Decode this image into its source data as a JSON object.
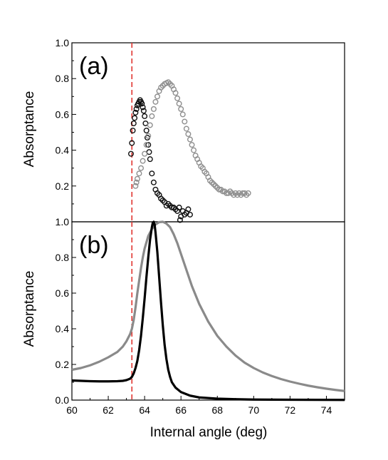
{
  "chart_data": [
    {
      "type": "scatter",
      "panel_label": "(a)",
      "ylabel": "Absorptance",
      "xlim": [
        60,
        75
      ],
      "ylim": [
        0,
        1.0
      ],
      "yticks": [
        "1.0",
        "0.8",
        "0.6",
        "0.4",
        "0.2"
      ],
      "reference_line": {
        "x": 63.3,
        "style": "dashed",
        "color": "#e0342f"
      },
      "series": [
        {
          "color": "#111111",
          "marker": "open-circle",
          "points": [
            [
              63.25,
              0.38
            ],
            [
              63.3,
              0.44
            ],
            [
              63.35,
              0.51
            ],
            [
              63.4,
              0.55
            ],
            [
              63.45,
              0.58
            ],
            [
              63.5,
              0.61
            ],
            [
              63.55,
              0.63
            ],
            [
              63.6,
              0.65
            ],
            [
              63.65,
              0.66
            ],
            [
              63.7,
              0.67
            ],
            [
              63.75,
              0.68
            ],
            [
              63.8,
              0.67
            ],
            [
              63.85,
              0.66
            ],
            [
              63.9,
              0.64
            ],
            [
              63.95,
              0.62
            ],
            [
              64.0,
              0.59
            ],
            [
              64.05,
              0.55
            ],
            [
              64.1,
              0.51
            ],
            [
              64.15,
              0.47
            ],
            [
              64.2,
              0.43
            ],
            [
              64.25,
              0.39
            ],
            [
              64.3,
              0.35
            ],
            [
              64.4,
              0.27
            ],
            [
              64.5,
              0.22
            ],
            [
              64.6,
              0.18
            ],
            [
              64.7,
              0.16
            ],
            [
              64.8,
              0.15
            ],
            [
              64.9,
              0.13
            ],
            [
              65.0,
              0.12
            ],
            [
              65.1,
              0.11
            ],
            [
              65.2,
              0.09
            ],
            [
              65.3,
              0.1
            ],
            [
              65.4,
              0.09
            ],
            [
              65.5,
              0.08
            ],
            [
              65.6,
              0.08
            ],
            [
              65.7,
              0.07
            ],
            [
              65.8,
              0.06
            ],
            [
              65.9,
              0.08
            ],
            [
              66.0,
              0.03
            ],
            [
              66.1,
              0.06
            ],
            [
              66.2,
              0.04
            ],
            [
              66.3,
              0.05
            ],
            [
              66.4,
              0.07
            ],
            [
              66.5,
              0.04
            ],
            [
              65.95,
              0.01
            ]
          ]
        },
        {
          "color": "#8f8f8f",
          "marker": "open-circle",
          "points": [
            [
              63.5,
              0.2
            ],
            [
              63.55,
              0.22
            ],
            [
              63.6,
              0.24
            ],
            [
              63.7,
              0.27
            ],
            [
              63.8,
              0.3
            ],
            [
              63.9,
              0.34
            ],
            [
              64.0,
              0.38
            ],
            [
              64.1,
              0.43
            ],
            [
              64.2,
              0.48
            ],
            [
              64.3,
              0.54
            ],
            [
              64.4,
              0.59
            ],
            [
              64.5,
              0.63
            ],
            [
              64.6,
              0.67
            ],
            [
              64.7,
              0.7
            ],
            [
              64.8,
              0.73
            ],
            [
              64.9,
              0.75
            ],
            [
              65.0,
              0.76
            ],
            [
              65.1,
              0.77
            ],
            [
              65.2,
              0.775
            ],
            [
              65.3,
              0.78
            ],
            [
              65.4,
              0.77
            ],
            [
              65.5,
              0.76
            ],
            [
              65.6,
              0.74
            ],
            [
              65.7,
              0.72
            ],
            [
              65.8,
              0.69
            ],
            [
              65.9,
              0.66
            ],
            [
              66.0,
              0.63
            ],
            [
              66.1,
              0.6
            ],
            [
              66.2,
              0.56
            ],
            [
              66.3,
              0.52
            ],
            [
              66.4,
              0.49
            ],
            [
              66.5,
              0.46
            ],
            [
              66.6,
              0.43
            ],
            [
              66.7,
              0.4
            ],
            [
              66.8,
              0.37
            ],
            [
              66.9,
              0.35
            ],
            [
              67.0,
              0.33
            ],
            [
              67.1,
              0.31
            ],
            [
              67.2,
              0.3
            ],
            [
              67.3,
              0.28
            ],
            [
              67.4,
              0.27
            ],
            [
              67.5,
              0.25
            ],
            [
              67.6,
              0.23
            ],
            [
              67.7,
              0.22
            ],
            [
              67.8,
              0.21
            ],
            [
              67.9,
              0.2
            ],
            [
              68.0,
              0.19
            ],
            [
              68.1,
              0.18
            ],
            [
              68.2,
              0.18
            ],
            [
              68.3,
              0.17
            ],
            [
              68.4,
              0.17
            ],
            [
              68.5,
              0.16
            ],
            [
              68.6,
              0.16
            ],
            [
              68.7,
              0.17
            ],
            [
              68.8,
              0.16
            ],
            [
              68.9,
              0.15
            ],
            [
              69.0,
              0.16
            ],
            [
              69.1,
              0.15
            ],
            [
              69.2,
              0.16
            ],
            [
              69.3,
              0.15
            ],
            [
              69.4,
              0.16
            ],
            [
              69.5,
              0.16
            ],
            [
              69.6,
              0.15
            ],
            [
              69.7,
              0.16
            ]
          ]
        }
      ]
    },
    {
      "type": "line",
      "panel_label": "(b)",
      "xlabel": "Internal angle (deg)",
      "ylabel": "Absorptance",
      "xlim": [
        60,
        75
      ],
      "ylim": [
        0,
        1.0
      ],
      "xticks": [
        "60",
        "62",
        "64",
        "66",
        "68",
        "70",
        "72",
        "74"
      ],
      "yticks": [
        "1.0",
        "0.8",
        "0.6",
        "0.4",
        "0.2",
        "0.0"
      ],
      "reference_line": {
        "x": 63.3,
        "style": "dashed",
        "color": "#e0342f"
      },
      "series": [
        {
          "color": "#8a8a8a",
          "points": [
            [
              60,
              0.17
            ],
            [
              60.5,
              0.18
            ],
            [
              61,
              0.195
            ],
            [
              61.5,
              0.215
            ],
            [
              62,
              0.24
            ],
            [
              62.5,
              0.27
            ],
            [
              62.8,
              0.3
            ],
            [
              63.0,
              0.33
            ],
            [
              63.2,
              0.37
            ],
            [
              63.3,
              0.4
            ],
            [
              63.4,
              0.45
            ],
            [
              63.5,
              0.52
            ],
            [
              63.6,
              0.6
            ],
            [
              63.7,
              0.67
            ],
            [
              63.8,
              0.74
            ],
            [
              63.9,
              0.8
            ],
            [
              64.0,
              0.85
            ],
            [
              64.2,
              0.92
            ],
            [
              64.4,
              0.96
            ],
            [
              64.6,
              0.985
            ],
            [
              64.8,
              0.998
            ],
            [
              65.0,
              1.0
            ],
            [
              65.2,
              0.99
            ],
            [
              65.4,
              0.97
            ],
            [
              65.6,
              0.93
            ],
            [
              65.8,
              0.88
            ],
            [
              66.0,
              0.82
            ],
            [
              66.3,
              0.73
            ],
            [
              66.6,
              0.64
            ],
            [
              67.0,
              0.54
            ],
            [
              67.5,
              0.44
            ],
            [
              68.0,
              0.36
            ],
            [
              68.5,
              0.3
            ],
            [
              69.0,
              0.25
            ],
            [
              69.5,
              0.21
            ],
            [
              70.0,
              0.18
            ],
            [
              70.5,
              0.155
            ],
            [
              71.0,
              0.135
            ],
            [
              71.5,
              0.118
            ],
            [
              72.0,
              0.104
            ],
            [
              72.5,
              0.092
            ],
            [
              73.0,
              0.081
            ],
            [
              73.5,
              0.072
            ],
            [
              74.0,
              0.064
            ],
            [
              74.5,
              0.057
            ],
            [
              75.0,
              0.051
            ]
          ]
        },
        {
          "color": "#000000",
          "points": [
            [
              60,
              0.11
            ],
            [
              60.5,
              0.108
            ],
            [
              61,
              0.106
            ],
            [
              61.5,
              0.105
            ],
            [
              62,
              0.105
            ],
            [
              62.5,
              0.106
            ],
            [
              62.8,
              0.108
            ],
            [
              63.0,
              0.112
            ],
            [
              63.2,
              0.12
            ],
            [
              63.3,
              0.13
            ],
            [
              63.4,
              0.15
            ],
            [
              63.5,
              0.18
            ],
            [
              63.6,
              0.22
            ],
            [
              63.7,
              0.28
            ],
            [
              63.8,
              0.36
            ],
            [
              63.9,
              0.46
            ],
            [
              64.0,
              0.57
            ],
            [
              64.1,
              0.69
            ],
            [
              64.2,
              0.8
            ],
            [
              64.3,
              0.9
            ],
            [
              64.4,
              0.97
            ],
            [
              64.45,
              0.995
            ],
            [
              64.5,
              1.0
            ],
            [
              64.55,
              0.985
            ],
            [
              64.6,
              0.94
            ],
            [
              64.7,
              0.83
            ],
            [
              64.8,
              0.69
            ],
            [
              64.9,
              0.55
            ],
            [
              65.0,
              0.42
            ],
            [
              65.1,
              0.31
            ],
            [
              65.2,
              0.23
            ],
            [
              65.3,
              0.17
            ],
            [
              65.4,
              0.13
            ],
            [
              65.5,
              0.1
            ],
            [
              65.7,
              0.07
            ],
            [
              66.0,
              0.045
            ],
            [
              66.5,
              0.025
            ],
            [
              67.0,
              0.015
            ],
            [
              68.0,
              0.008
            ],
            [
              69.0,
              0.005
            ],
            [
              70.0,
              0.003
            ],
            [
              72.0,
              0.002
            ],
            [
              75.0,
              0.001
            ]
          ]
        }
      ]
    }
  ]
}
